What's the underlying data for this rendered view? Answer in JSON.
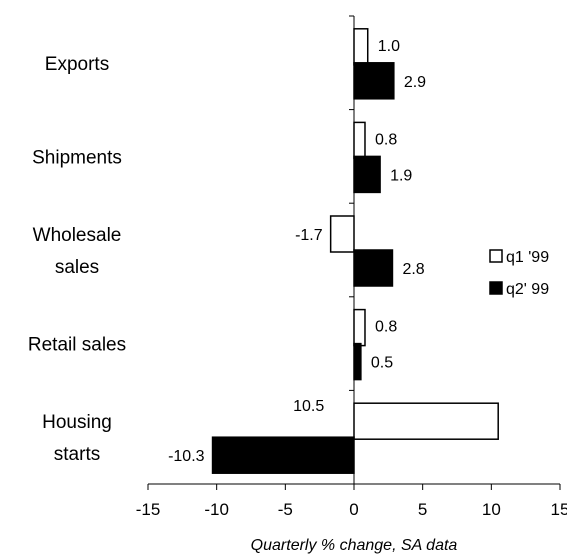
{
  "chart_data": {
    "type": "bar",
    "orientation": "horizontal",
    "categories": [
      "Exports",
      "Shipments",
      "Wholesale sales",
      "Retail sales",
      "Housing starts"
    ],
    "category_lines": [
      [
        "Exports"
      ],
      [
        "Shipments"
      ],
      [
        "Wholesale",
        "sales"
      ],
      [
        "Retail sales"
      ],
      [
        "Housing",
        "starts"
      ]
    ],
    "series": [
      {
        "name": "q1 '99",
        "values": [
          1.0,
          0.8,
          -1.7,
          0.8,
          10.5
        ],
        "labels": [
          "1.0",
          "0.8",
          "-1.7",
          "0.8",
          "10.5"
        ],
        "color": "#ffffff"
      },
      {
        "name": "q2' 99",
        "values": [
          2.9,
          1.9,
          2.8,
          0.5,
          -10.3
        ],
        "labels": [
          "2.9",
          "1.9",
          "2.8",
          "0.5",
          "-10.3"
        ],
        "color": "#000000"
      }
    ],
    "xlim": [
      -15,
      15
    ],
    "xticks": [
      -15,
      -10,
      -5,
      0,
      5,
      10,
      15
    ],
    "xtick_labels": [
      "-15",
      "-10",
      "-5",
      "0",
      "5",
      "10",
      "15"
    ],
    "xlabel": "Quarterly % change, SA data",
    "ylabel": "",
    "title": "",
    "grid": false,
    "legend_position": "right"
  }
}
